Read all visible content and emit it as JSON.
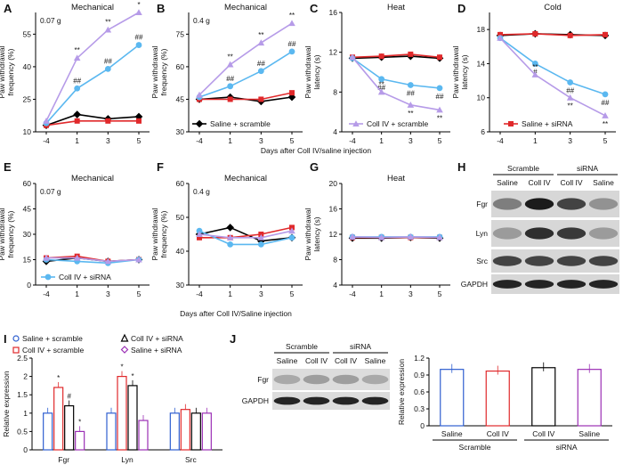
{
  "figure_labels": {
    "A": "A",
    "B": "B",
    "C": "C",
    "D": "D",
    "E": "E",
    "F": "F",
    "G": "G",
    "H": "H",
    "I": "I",
    "J": "J"
  },
  "shared": {
    "days": [
      -4,
      1,
      3,
      5
    ],
    "xlabel_top": "Days after Coll IV/saline injection",
    "xlabel_mid": "Days after Coll IV/Saline injection",
    "ylabel_freq": [
      "Paw withdrawal",
      "frequency (%)"
    ],
    "ylabel_lat": [
      "Paw withdrawal",
      "latency (s)"
    ],
    "colors": {
      "saline_scramble": "#000000",
      "coll_scramble": "#b69be8",
      "coll_sirna": "#5bb8f0",
      "saline_sirna": "#e0292b"
    }
  },
  "chart_data": [
    {
      "panel": "A",
      "type": "line",
      "title": "Mechanical",
      "annotation": "0.07 g",
      "x": [
        -4,
        1,
        3,
        5
      ],
      "ylim": [
        10,
        65
      ],
      "yticks": [
        10,
        25,
        40,
        55
      ],
      "series": [
        {
          "name": "Coll IV + scramble",
          "values": [
            15,
            44,
            57,
            65
          ],
          "sig": [
            "",
            "**",
            "**",
            "*"
          ]
        },
        {
          "name": "Coll IV + siRNA",
          "values": [
            14,
            30,
            39,
            50
          ],
          "sig": [
            "",
            "##",
            "##",
            "##"
          ]
        },
        {
          "name": "Saline + scramble",
          "values": [
            13,
            18,
            16,
            17
          ]
        },
        {
          "name": "Saline + siRNA",
          "values": [
            13,
            15,
            15,
            15
          ]
        }
      ]
    },
    {
      "panel": "B",
      "type": "line",
      "title": "Mechanical",
      "annotation": "0.4 g",
      "x": [
        -4,
        1,
        3,
        5
      ],
      "ylim": [
        30,
        85
      ],
      "yticks": [
        30,
        45,
        60,
        75
      ],
      "legend": "Saline + scramble",
      "series": [
        {
          "name": "Coll IV + scramble",
          "values": [
            47,
            61,
            71,
            80
          ],
          "sig": [
            "",
            "**",
            "**",
            "**"
          ]
        },
        {
          "name": "Coll IV + siRNA",
          "values": [
            46,
            51,
            58,
            67
          ],
          "sig": [
            "",
            "##",
            "##",
            "##"
          ]
        },
        {
          "name": "Saline + scramble",
          "values": [
            45,
            46,
            44,
            46
          ]
        },
        {
          "name": "Saline + siRNA",
          "values": [
            45,
            45,
            45,
            48
          ]
        }
      ]
    },
    {
      "panel": "C",
      "type": "line",
      "title": "Heat",
      "x": [
        -4,
        1,
        3,
        5
      ],
      "ylim": [
        4,
        16
      ],
      "yticks": [
        4,
        8,
        12,
        16
      ],
      "legend": "Coll IV + scramble",
      "series": [
        {
          "name": "Coll IV + scramble",
          "values": [
            11.5,
            8.0,
            6.7,
            6.2
          ],
          "sig": [
            "",
            "**",
            "**",
            "**"
          ]
        },
        {
          "name": "Coll IV + siRNA",
          "values": [
            11.4,
            9.3,
            8.7,
            8.4
          ],
          "sig": [
            "",
            "##",
            "##",
            "##"
          ]
        },
        {
          "name": "Saline + scramble",
          "values": [
            11.4,
            11.5,
            11.6,
            11.4
          ]
        },
        {
          "name": "Saline + siRNA",
          "values": [
            11.5,
            11.6,
            11.8,
            11.5
          ]
        }
      ]
    },
    {
      "panel": "D",
      "type": "line",
      "title": "Cold",
      "x": [
        -4,
        1,
        3,
        5
      ],
      "ylim": [
        6,
        20
      ],
      "yticks": [
        6,
        10,
        14,
        18
      ],
      "legend": "Saline + siRNA",
      "series": [
        {
          "name": "Coll IV + scramble",
          "values": [
            17.0,
            12.7,
            10.0,
            7.9
          ],
          "sig": [
            "",
            "**",
            "**",
            "**"
          ]
        },
        {
          "name": "Coll IV + siRNA",
          "values": [
            17.0,
            14.0,
            11.8,
            10.4
          ],
          "sig": [
            "",
            "#",
            "##",
            "##"
          ]
        },
        {
          "name": "Saline + scramble",
          "values": [
            17.3,
            17.5,
            17.4,
            17.3
          ]
        },
        {
          "name": "Saline + siRNA",
          "values": [
            17.4,
            17.5,
            17.3,
            17.4
          ]
        }
      ]
    },
    {
      "panel": "E",
      "type": "line",
      "title": "Mechanical",
      "annotation": "0.07 g",
      "x": [
        -4,
        1,
        3,
        5
      ],
      "ylim": [
        0,
        60
      ],
      "yticks": [
        0,
        15,
        30,
        45,
        60
      ],
      "legend": "Coll IV + siRNA",
      "series": [
        {
          "name": "Coll IV + scramble",
          "values": [
            16,
            16,
            14,
            15
          ]
        },
        {
          "name": "Coll IV + siRNA",
          "values": [
            15,
            14,
            13,
            15
          ]
        },
        {
          "name": "Saline + scramble",
          "values": [
            14,
            16,
            14,
            15
          ]
        },
        {
          "name": "Saline + siRNA",
          "values": [
            16,
            17,
            14,
            15
          ]
        }
      ]
    },
    {
      "panel": "F",
      "type": "line",
      "title": "Mechanical",
      "annotation": "0.4 g",
      "x": [
        -4,
        1,
        3,
        5
      ],
      "ylim": [
        30,
        60
      ],
      "yticks": [
        30,
        40,
        50,
        60
      ],
      "series": [
        {
          "name": "Coll IV + scramble",
          "values": [
            45,
            44,
            44,
            46
          ]
        },
        {
          "name": "Coll IV + siRNA",
          "values": [
            46,
            42,
            42,
            44
          ]
        },
        {
          "name": "Saline + scramble",
          "values": [
            45,
            47,
            43,
            44
          ]
        },
        {
          "name": "Saline + siRNA",
          "values": [
            44,
            44,
            45,
            47
          ]
        }
      ]
    },
    {
      "panel": "G",
      "type": "line",
      "title": "Heat",
      "x": [
        -4,
        1,
        3,
        5
      ],
      "ylim": [
        4,
        20
      ],
      "yticks": [
        4,
        8,
        12,
        16,
        20
      ],
      "series": [
        {
          "name": "Coll IV + scramble",
          "values": [
            11.6,
            11.5,
            11.6,
            11.5
          ]
        },
        {
          "name": "Coll IV + siRNA",
          "values": [
            11.6,
            11.6,
            11.6,
            11.6
          ]
        },
        {
          "name": "Saline + scramble",
          "values": [
            11.4,
            11.4,
            11.5,
            11.4
          ]
        },
        {
          "name": "Saline + siRNA",
          "values": [
            11.5,
            11.5,
            11.5,
            11.5
          ]
        }
      ]
    },
    {
      "panel": "I",
      "type": "bar",
      "categories": [
        "Fgr",
        "Lyn",
        "Src"
      ],
      "ylabel": "Relative expression",
      "ylim": [
        0,
        2.5
      ],
      "yticks": [
        0,
        0.5,
        1.0,
        1.5,
        2.0,
        2.5
      ],
      "series": [
        {
          "name": "Saline + scramble",
          "values": [
            1.0,
            1.0,
            1.0
          ],
          "sig": [
            "",
            "",
            ""
          ]
        },
        {
          "name": "Coll IV + scramble",
          "values": [
            1.7,
            2.0,
            1.1
          ],
          "sig": [
            "*",
            "*",
            ""
          ]
        },
        {
          "name": "Coll IV + siRNA",
          "values": [
            1.2,
            1.75,
            1.0
          ],
          "sig": [
            "#",
            "*",
            ""
          ]
        },
        {
          "name": "Saline + siRNA",
          "values": [
            0.5,
            0.8,
            1.0
          ],
          "sig": [
            "*",
            "",
            ""
          ]
        }
      ]
    },
    {
      "panel": "J",
      "type": "bar",
      "categories": [
        "Saline",
        "Coll IV",
        "Coll IV",
        "Saline"
      ],
      "groups": [
        "Scramble",
        "siRNA"
      ],
      "ylabel": "Relative expression",
      "ylim": [
        0,
        1.2
      ],
      "yticks": [
        0,
        0.3,
        0.6,
        0.9,
        1.2
      ],
      "values": [
        1.0,
        0.97,
        1.03,
        1.0
      ]
    }
  ],
  "blot_H": {
    "groups": [
      "Scramble",
      "siRNA"
    ],
    "lanes": [
      "Saline",
      "Coll IV",
      "Coll IV",
      "Saline"
    ],
    "rows": [
      "Fgr",
      "Lyn",
      "Src",
      "GAPDH"
    ]
  },
  "blot_J": {
    "groups": [
      "Scramble",
      "siRNA"
    ],
    "lanes": [
      "Saline",
      "Coll IV",
      "Coll IV",
      "Saline"
    ],
    "rows": [
      "Fgr",
      "GAPDH"
    ]
  }
}
